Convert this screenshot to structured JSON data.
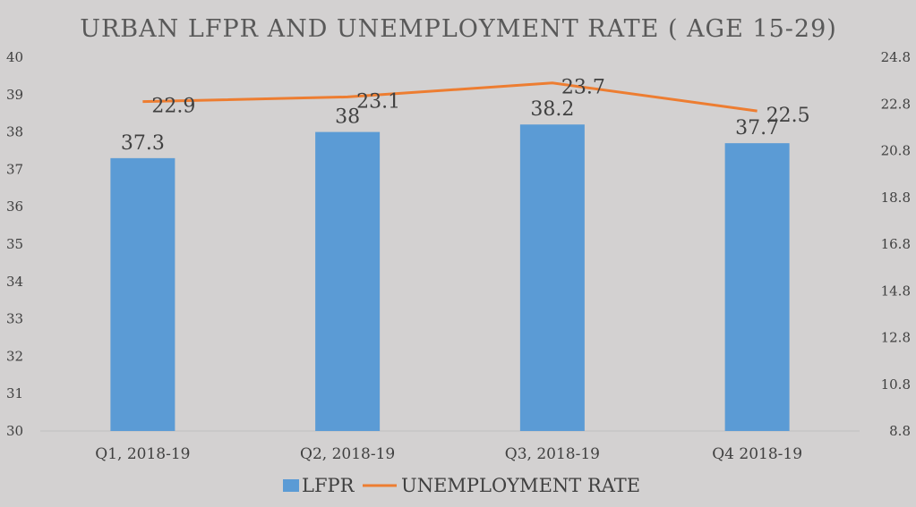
{
  "chart_data": {
    "type": "bar",
    "title": "URBAN LFPR AND UNEMPLOYMENT RATE ( AGE 15-29)",
    "categories": [
      "Q1, 2018-19",
      "Q2, 2018-19",
      "Q3, 2018-19",
      "Q4 2018-19"
    ],
    "series": [
      {
        "name": "LFPR",
        "type": "bar",
        "axis": "left",
        "values": [
          37.3,
          38,
          38.2,
          37.7
        ],
        "value_labels": [
          "37.3",
          "38",
          "38.2",
          "37.7"
        ],
        "color": "#5b9bd5"
      },
      {
        "name": "UNEMPLOYMENT RATE",
        "type": "line",
        "axis": "right",
        "values": [
          22.9,
          23.1,
          23.7,
          22.5
        ],
        "value_labels": [
          "22.9",
          "23.1",
          "23.7",
          "22.5"
        ],
        "color": "#ed7d31"
      }
    ],
    "left_axis": {
      "min": 30,
      "max": 40,
      "ticks": [
        "30",
        "31",
        "32",
        "33",
        "34",
        "35",
        "36",
        "37",
        "38",
        "39",
        "40"
      ]
    },
    "right_axis": {
      "min": 8.8,
      "max": 24.8,
      "ticks": [
        "8.8",
        "10.8",
        "12.8",
        "14.8",
        "16.8",
        "18.8",
        "20.8",
        "22.8",
        "24.8"
      ]
    },
    "legend_position": "bottom",
    "grid": false
  }
}
